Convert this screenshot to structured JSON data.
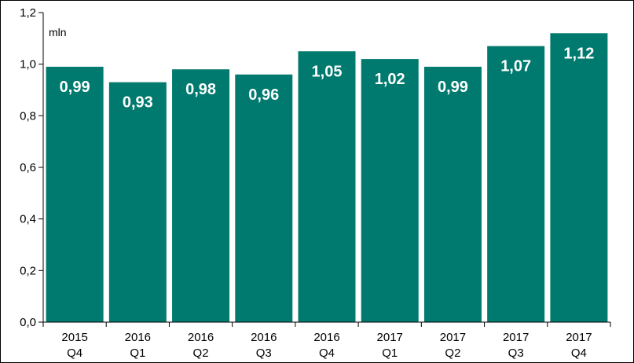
{
  "chart_data": {
    "type": "bar",
    "title": "",
    "xlabel": "",
    "ylabel": "",
    "unit_label": "mln",
    "ylim": [
      0,
      1.2
    ],
    "yticks": [
      "0,0",
      "0,2",
      "0,4",
      "0,6",
      "0,8",
      "1,0",
      "1,2"
    ],
    "ytick_values": [
      0,
      0.2,
      0.4,
      0.6,
      0.8,
      1.0,
      1.2
    ],
    "categories": [
      {
        "year": "2015",
        "quarter": "Q4"
      },
      {
        "year": "2016",
        "quarter": "Q1"
      },
      {
        "year": "2016",
        "quarter": "Q2"
      },
      {
        "year": "2016",
        "quarter": "Q3"
      },
      {
        "year": "2016",
        "quarter": "Q4"
      },
      {
        "year": "2017",
        "quarter": "Q1"
      },
      {
        "year": "2017",
        "quarter": "Q2"
      },
      {
        "year": "2017",
        "quarter": "Q3"
      },
      {
        "year": "2017",
        "quarter": "Q4"
      }
    ],
    "values": [
      0.99,
      0.93,
      0.98,
      0.96,
      1.05,
      1.02,
      0.99,
      1.07,
      1.12
    ],
    "value_labels": [
      "0,99",
      "0,93",
      "0,98",
      "0,96",
      "1,05",
      "1,02",
      "0,99",
      "1,07",
      "1,12"
    ],
    "bar_color": "#007A6E",
    "grid": false,
    "legend": "none"
  }
}
